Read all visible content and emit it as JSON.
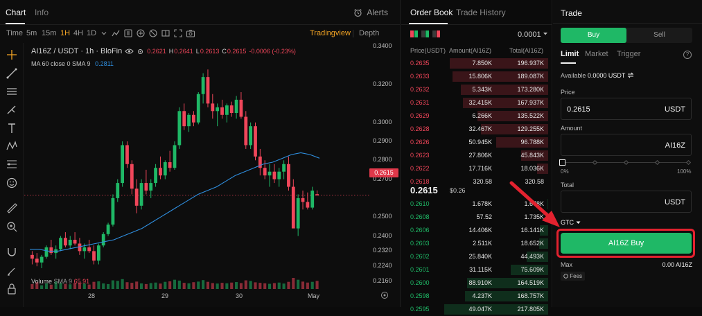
{
  "chart_tabs": {
    "chart": "Chart",
    "info": "Info",
    "alerts": "Alerts"
  },
  "toolbar": {
    "time_label": "Time",
    "intervals": [
      "5m",
      "15m",
      "1H",
      "4H",
      "1D"
    ],
    "active_interval": "1H",
    "interval_menu": "chevron-down-icon",
    "tradingview": "Tradingview",
    "depth": "Depth"
  },
  "legend": {
    "pair": "AI16Z / USDT · 1h · BloFin",
    "o_label": "",
    "open": "0.2621",
    "h_label": "H",
    "high": "0.2641",
    "l_label": "L",
    "low": "0.2613",
    "c_label": "C",
    "close": "0.2615",
    "change": "-0.0006 (-0.23%)",
    "ma_label": "MA 60 close 0 SMA 9",
    "ma_value": "0.2811",
    "volume_label": "Volume",
    "volume_sma": "SMA 9",
    "volume_value": "65.91"
  },
  "price_axis": [
    "0.3400",
    "0.3200",
    "0.3000",
    "0.2900",
    "0.2800",
    "0.2700",
    "0.2615",
    "0.2500",
    "0.2400",
    "0.2320",
    "0.2240",
    "0.2160"
  ],
  "last_price": "0.2615",
  "time_axis": [
    "28",
    "29",
    "30",
    "May"
  ],
  "chart_data": {
    "type": "candlestick",
    "title": "AI16Z / USDT · 1h · BloFin",
    "ylim": [
      0.212,
      0.342
    ],
    "ma_series_name": "MA 60 close 0 SMA 9",
    "candles_ohlc": [
      [
        0.23,
        0.232,
        0.225,
        0.228
      ],
      [
        0.228,
        0.231,
        0.224,
        0.226
      ],
      [
        0.226,
        0.23,
        0.223,
        0.229
      ],
      [
        0.229,
        0.235,
        0.228,
        0.234
      ],
      [
        0.234,
        0.238,
        0.23,
        0.231
      ],
      [
        0.231,
        0.235,
        0.228,
        0.233
      ],
      [
        0.233,
        0.24,
        0.232,
        0.239
      ],
      [
        0.239,
        0.242,
        0.234,
        0.235
      ],
      [
        0.235,
        0.24,
        0.233,
        0.238
      ],
      [
        0.238,
        0.242,
        0.235,
        0.236
      ],
      [
        0.236,
        0.239,
        0.23,
        0.232
      ],
      [
        0.232,
        0.236,
        0.228,
        0.234
      ],
      [
        0.234,
        0.238,
        0.231,
        0.232
      ],
      [
        0.232,
        0.235,
        0.225,
        0.227
      ],
      [
        0.227,
        0.236,
        0.225,
        0.235
      ],
      [
        0.235,
        0.242,
        0.234,
        0.241
      ],
      [
        0.241,
        0.247,
        0.24,
        0.246
      ],
      [
        0.246,
        0.262,
        0.245,
        0.26
      ],
      [
        0.26,
        0.27,
        0.258,
        0.268
      ],
      [
        0.268,
        0.29,
        0.266,
        0.288
      ],
      [
        0.288,
        0.29,
        0.276,
        0.278
      ],
      [
        0.278,
        0.28,
        0.262,
        0.265
      ],
      [
        0.265,
        0.27,
        0.252,
        0.256
      ],
      [
        0.256,
        0.27,
        0.254,
        0.268
      ],
      [
        0.268,
        0.275,
        0.262,
        0.264
      ],
      [
        0.264,
        0.27,
        0.26,
        0.268
      ],
      [
        0.268,
        0.278,
        0.266,
        0.276
      ],
      [
        0.276,
        0.282,
        0.27,
        0.272
      ],
      [
        0.272,
        0.28,
        0.27,
        0.279
      ],
      [
        0.279,
        0.285,
        0.274,
        0.276
      ],
      [
        0.276,
        0.29,
        0.275,
        0.288
      ],
      [
        0.288,
        0.308,
        0.286,
        0.306
      ],
      [
        0.306,
        0.31,
        0.296,
        0.298
      ],
      [
        0.298,
        0.305,
        0.295,
        0.304
      ],
      [
        0.304,
        0.306,
        0.298,
        0.3
      ],
      [
        0.3,
        0.316,
        0.299,
        0.315
      ],
      [
        0.315,
        0.326,
        0.31,
        0.324
      ],
      [
        0.324,
        0.328,
        0.308,
        0.31
      ],
      [
        0.31,
        0.315,
        0.302,
        0.306
      ],
      [
        0.306,
        0.31,
        0.298,
        0.308
      ],
      [
        0.308,
        0.312,
        0.302,
        0.304
      ],
      [
        0.304,
        0.31,
        0.3,
        0.309
      ],
      [
        0.309,
        0.311,
        0.303,
        0.305
      ],
      [
        0.305,
        0.314,
        0.302,
        0.312
      ],
      [
        0.312,
        0.316,
        0.302,
        0.303
      ],
      [
        0.303,
        0.306,
        0.286,
        0.288
      ],
      [
        0.288,
        0.3,
        0.286,
        0.298
      ],
      [
        0.298,
        0.3,
        0.28,
        0.282
      ],
      [
        0.282,
        0.286,
        0.272,
        0.276
      ],
      [
        0.276,
        0.28,
        0.27,
        0.272
      ],
      [
        0.272,
        0.278,
        0.266,
        0.274
      ],
      [
        0.274,
        0.278,
        0.268,
        0.27
      ],
      [
        0.27,
        0.276,
        0.266,
        0.274
      ],
      [
        0.274,
        0.28,
        0.27,
        0.278
      ],
      [
        0.278,
        0.282,
        0.264,
        0.266
      ],
      [
        0.266,
        0.27,
        0.248,
        0.244
      ],
      [
        0.244,
        0.262,
        0.24,
        0.26
      ],
      [
        0.26,
        0.264,
        0.254,
        0.258
      ],
      [
        0.258,
        0.263,
        0.254,
        0.255
      ],
      [
        0.255,
        0.266,
        0.254,
        0.264
      ],
      [
        0.2621,
        0.2641,
        0.2613,
        0.2615
      ]
    ],
    "ma_values": [
      0.233,
      0.233,
      0.232,
      0.232,
      0.233,
      0.234,
      0.235,
      0.236,
      0.237,
      0.238,
      0.24,
      0.242,
      0.244,
      0.247,
      0.25,
      0.253,
      0.256,
      0.259,
      0.262,
      0.264,
      0.266,
      0.269,
      0.272,
      0.274,
      0.276,
      0.278,
      0.279,
      0.281,
      0.283,
      0.284,
      0.283,
      0.2811
    ],
    "volumes": [
      40,
      55,
      30,
      45,
      35,
      60,
      50,
      42,
      38,
      48,
      52,
      44,
      36,
      58,
      62,
      45,
      40,
      70,
      66,
      80,
      55,
      50,
      60,
      45,
      40,
      48,
      52,
      44,
      58,
      62,
      75,
      68,
      50,
      46,
      55,
      60,
      72,
      58,
      48,
      44,
      50,
      46,
      52,
      56,
      48,
      70,
      65,
      54,
      50,
      46,
      42,
      48,
      52,
      44,
      58,
      90,
      75,
      60,
      52,
      58,
      65.91
    ]
  },
  "order_book": {
    "tab_active": "Order Book",
    "tab_inactive": "Trade History",
    "tick_size": "0.0001",
    "col_price": "Price(USDT)",
    "col_amount": "Amount(AI16Z)",
    "col_total": "Total(AI16Z)",
    "asks": [
      {
        "price": "0.2635",
        "amount": "7.850K",
        "total": "196.937K",
        "depth": 0.95
      },
      {
        "price": "0.2633",
        "amount": "15.806K",
        "total": "189.087K",
        "depth": 0.92
      },
      {
        "price": "0.2632",
        "amount": "5.343K",
        "total": "173.280K",
        "depth": 0.84
      },
      {
        "price": "0.2631",
        "amount": "32.415K",
        "total": "167.937K",
        "depth": 0.82
      },
      {
        "price": "0.2629",
        "amount": "6.266K",
        "total": "135.522K",
        "depth": 0.68
      },
      {
        "price": "0.2628",
        "amount": "32.467K",
        "total": "129.255K",
        "depth": 0.65
      },
      {
        "price": "0.2626",
        "amount": "50.945K",
        "total": "96.788K",
        "depth": 0.5
      },
      {
        "price": "0.2623",
        "amount": "27.806K",
        "total": "45.843K",
        "depth": 0.26
      },
      {
        "price": "0.2622",
        "amount": "17.716K",
        "total": "18.036K",
        "depth": 0.11
      },
      {
        "price": "0.2618",
        "amount": "320.58",
        "total": "320.58",
        "depth": 0.0
      }
    ],
    "mid_price": "0.2615",
    "mid_usd": "$0.26",
    "bids": [
      {
        "price": "0.2610",
        "amount": "1.678K",
        "total": "1.678K",
        "depth": 0.01
      },
      {
        "price": "0.2608",
        "amount": "57.52",
        "total": "1.735K",
        "depth": 0.01
      },
      {
        "price": "0.2606",
        "amount": "14.406K",
        "total": "16.141K",
        "depth": 0.08
      },
      {
        "price": "0.2603",
        "amount": "2.511K",
        "total": "18.652K",
        "depth": 0.09
      },
      {
        "price": "0.2602",
        "amount": "25.840K",
        "total": "44.493K",
        "depth": 0.21
      },
      {
        "price": "0.2601",
        "amount": "31.115K",
        "total": "75.609K",
        "depth": 0.36
      },
      {
        "price": "0.2600",
        "amount": "88.910K",
        "total": "164.519K",
        "depth": 0.78
      },
      {
        "price": "0.2598",
        "amount": "4.237K",
        "total": "168.757K",
        "depth": 0.8
      },
      {
        "price": "0.2595",
        "amount": "49.047K",
        "total": "217.805K",
        "depth": 1.0
      }
    ]
  },
  "trade": {
    "title": "Trade",
    "buy_tab": "Buy",
    "sell_tab": "Sell",
    "order_types": [
      "Limit",
      "Market",
      "Trigger"
    ],
    "available_label": "Available",
    "available_value": "0.0000 USDT",
    "price_label": "Price",
    "price_value": "0.2615",
    "price_unit": "USDT",
    "amount_label": "Amount",
    "amount_value": "",
    "amount_unit": "AI16Z",
    "slider_min": "0%",
    "slider_max": "100%",
    "slider_fraction": 0,
    "total_label": "Total",
    "total_value": "",
    "total_unit": "USDT",
    "tif": "GTC",
    "buy_button": "AI16Z Buy",
    "max_label": "Max",
    "max_value": "0.00 AI16Z",
    "fees": "Fees"
  },
  "colors": {
    "up": "#1fb866",
    "down": "#f0465a",
    "accent": "#f5a524",
    "ma": "#2f8fe0"
  }
}
